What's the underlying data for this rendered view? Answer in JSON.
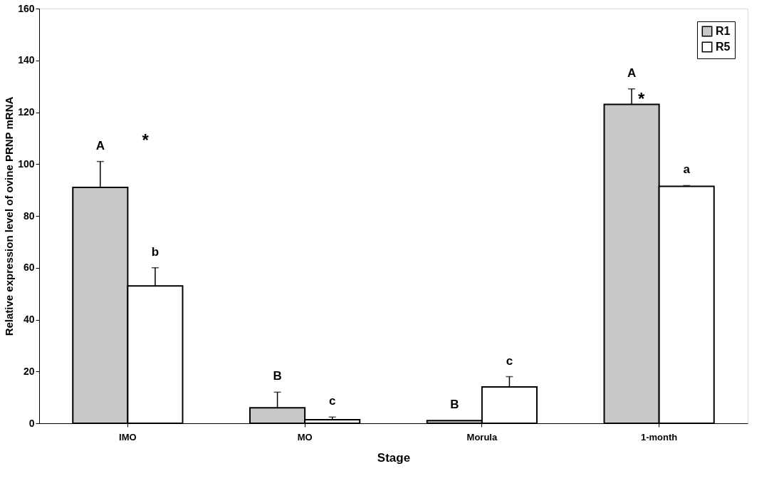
{
  "chart_data": {
    "type": "bar",
    "xlabel": "Stage",
    "ylabel": "Relative expression level of ovine PRNP mRNA",
    "categories": [
      "IMO",
      "MO",
      "Morula",
      "1-month"
    ],
    "series": [
      {
        "name": "R1",
        "color": "#c8c8c8",
        "values": [
          91,
          6,
          1,
          123
        ],
        "errors": [
          [
            91,
            101
          ],
          [
            6,
            12
          ],
          null,
          [
            123,
            129
          ]
        ],
        "value_labels": [
          "A",
          "B",
          "B",
          "A"
        ]
      },
      {
        "name": "R5",
        "color": "#ffffff",
        "values": [
          53,
          1.4,
          14,
          91.4
        ],
        "errors": [
          [
            53,
            60
          ],
          [
            1.4,
            2.4
          ],
          [
            14,
            18
          ],
          [
            91.4,
            91.7
          ]
        ],
        "value_labels": [
          "b",
          "c",
          "c",
          "a"
        ]
      }
    ],
    "annotations": [
      "*",
      "*"
    ],
    "ylim": [
      0,
      160
    ],
    "yticks": [
      0,
      20,
      40,
      60,
      80,
      100,
      120,
      140,
      160
    ],
    "grid": false,
    "legend": "top right"
  }
}
